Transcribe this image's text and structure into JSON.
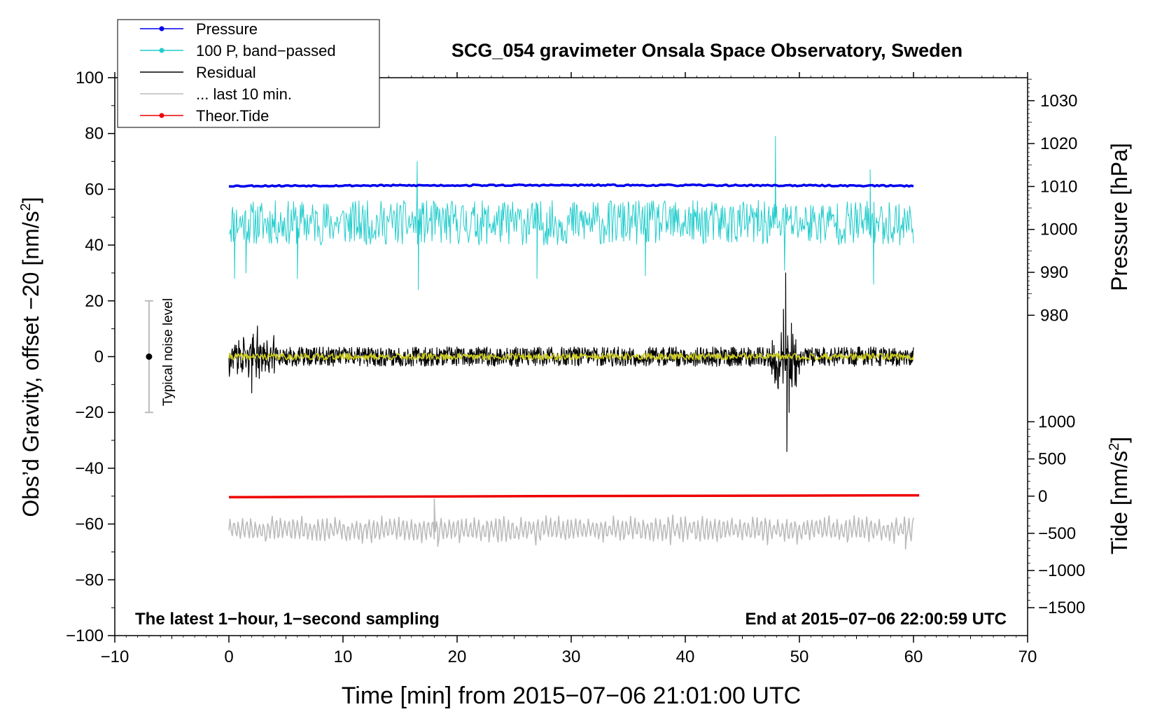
{
  "chart_data": {
    "type": "line",
    "title": "SCG_054 gravimeter Onsala Space Observatory, Sweden",
    "xlabel": "Time [min] from 2015−07−06 21:01:00 UTC",
    "ylabel_left": "Obs’d Gravity, offset −20 [nm/s",
    "ylabel_left_sup": "2",
    "ylabel_left_end": "]",
    "ylabel_right_pressure": "Pressure [hPa]",
    "ylabel_right_tide": "Tide [nm/s",
    "ylabel_right_tide_sup": "2",
    "ylabel_right_tide_end": "]",
    "xlim": [
      -10,
      70
    ],
    "ylim": [
      -100,
      100
    ],
    "x_ticks": [
      -10,
      0,
      10,
      20,
      30,
      40,
      50,
      60,
      70
    ],
    "x_tick_labels": [
      "−10",
      "0",
      "10",
      "20",
      "30",
      "40",
      "50",
      "60",
      "70"
    ],
    "y_ticks": [
      -100,
      -80,
      -60,
      -40,
      -20,
      0,
      20,
      40,
      60,
      80,
      100
    ],
    "y_tick_labels": [
      "−100",
      "−80",
      "−60",
      "−40",
      "−20",
      "0",
      "20",
      "40",
      "60",
      "80",
      "100"
    ],
    "pressure_ticks": [
      980,
      990,
      1000,
      1010,
      1020,
      1030
    ],
    "pressure_tick_labels": [
      "980",
      "990",
      "1000",
      "1010",
      "1020",
      "1030"
    ],
    "tide_ticks": [
      -1500,
      -1000,
      -500,
      0,
      500,
      1000
    ],
    "tide_tick_labels": [
      "−1500",
      "−1000",
      "−500",
      "0",
      "500",
      "1000"
    ],
    "pressure_axis_map": {
      "hpa_1010_at_y": 61,
      "hpa_per_y_unit": 0.65
    },
    "tide_axis_map": {
      "tide_0_at_y": -50,
      "tide_per_y_unit": 37.5
    },
    "legend_position": "top-left",
    "legend": [
      {
        "label": "Pressure",
        "color": "#0000ee",
        "marker": true
      },
      {
        "label": "100 P, band−passed",
        "color": "#22cccc",
        "marker": true
      },
      {
        "label": "Residual",
        "color": "#000000",
        "marker": false
      },
      {
        "label": "... last 10 min.",
        "color": "#bbbbbb",
        "marker": false
      },
      {
        "label": "Theor.Tide",
        "color": "#ee0000",
        "marker": true
      }
    ],
    "annotations": {
      "bottom_left": "The latest 1−hour, 1−second sampling",
      "bottom_right": "End at 2015−07−06 22:00:59 UTC",
      "noise_label": "Typical noise level"
    },
    "noise_bar": {
      "x": -7,
      "center": 0,
      "low": -20,
      "high": 20
    },
    "series": [
      {
        "name": "Pressure",
        "color": "#0000ee",
        "x_range": [
          0,
          60
        ],
        "level": 61.2,
        "noise": 0.5
      },
      {
        "name": "100 P, band−passed",
        "color": "#22cccc",
        "x_range": [
          0,
          60
        ],
        "level": 48,
        "noise": 8,
        "spikes": [
          [
            0.5,
            28
          ],
          [
            1.5,
            30
          ],
          [
            6,
            28
          ],
          [
            16.5,
            70
          ],
          [
            16.6,
            24
          ],
          [
            27,
            28
          ],
          [
            36.5,
            29
          ],
          [
            47.9,
            79
          ],
          [
            48.7,
            31
          ],
          [
            56.5,
            26
          ],
          [
            56.2,
            67
          ]
        ]
      },
      {
        "name": "Residual",
        "color": "#000000",
        "x_range": [
          0,
          60
        ],
        "level": 0,
        "noise": 3.5,
        "spikes": [
          [
            2,
            -13
          ],
          [
            2.5,
            11
          ],
          [
            48.8,
            30
          ],
          [
            48.9,
            -34
          ],
          [
            48.6,
            17
          ],
          [
            49.1,
            -20
          ],
          [
            49.3,
            12
          ]
        ]
      },
      {
        "name": "Residual (smoothed)",
        "color": "#cccc22",
        "x_range": [
          0,
          60
        ],
        "level": 0,
        "noise": 1.2
      },
      {
        "name": "... last 10 min.",
        "color": "#bbbbbb",
        "x_range": [
          0,
          60
        ],
        "level": -62,
        "noise": 3.5,
        "spikes": [
          [
            18,
            -51
          ],
          [
            18.3,
            -68
          ],
          [
            59.3,
            -69
          ]
        ]
      },
      {
        "name": "Theor.Tide",
        "color": "#ee0000",
        "x_range": [
          0,
          60.5
        ],
        "start": -50.4,
        "end": -49.7
      }
    ]
  }
}
